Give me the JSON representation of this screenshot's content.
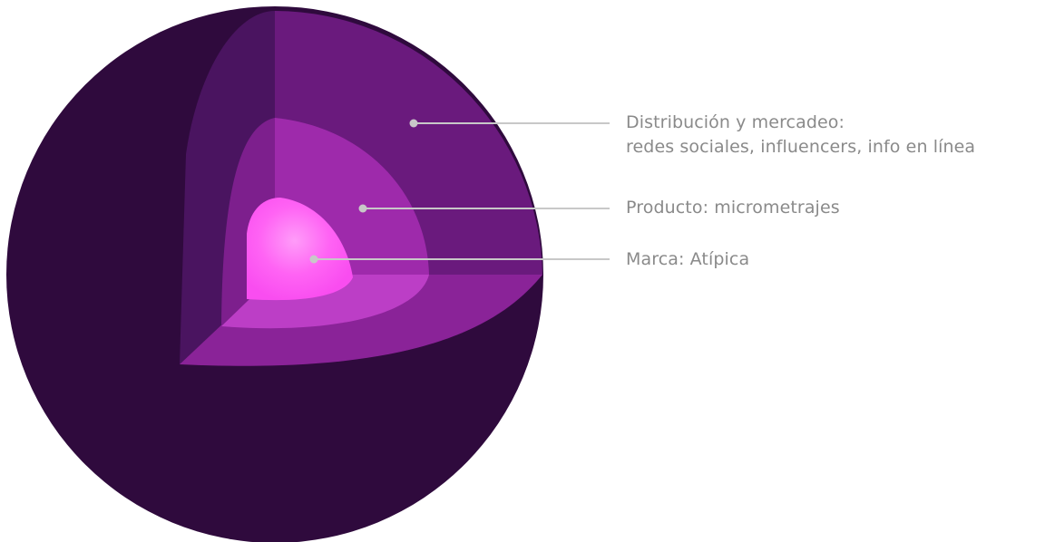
{
  "diagram": {
    "layers": [
      {
        "id": "distribution",
        "title": "Distribución y mercadeo:",
        "subtitle": "redes sociales, influencers, info en línea",
        "color": "#6a1a7d",
        "side_color": "#4a1460",
        "floor_color": "#8a2398"
      },
      {
        "id": "product",
        "title": "Producto: micrometrajes",
        "color": "#9e2aab",
        "side_color": "#7d1f8d",
        "floor_color": "#bc3ec6"
      },
      {
        "id": "brand",
        "title": "Marca: Atípica",
        "color": "#ff55f2",
        "highlight_color": "#ff8cf7"
      }
    ],
    "sphere_color": "#2f0a3d",
    "connector_color": "#c8c8c8",
    "label_color": "#8a8a8a"
  }
}
